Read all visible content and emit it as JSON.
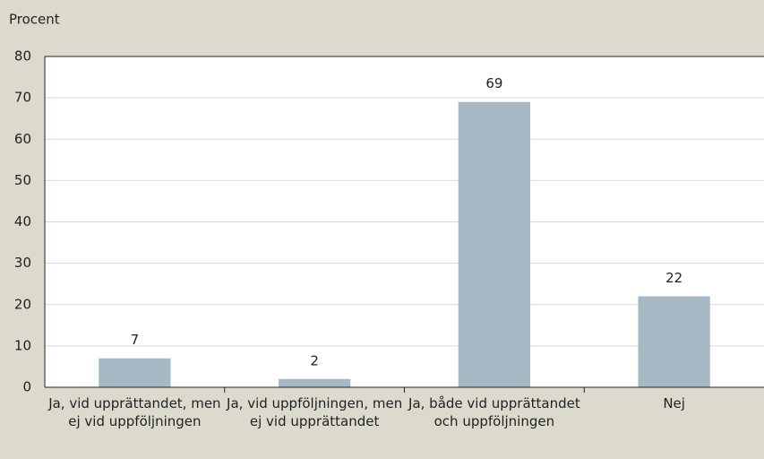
{
  "chart_data": {
    "type": "bar",
    "y_axis_label": "Procent",
    "categories": [
      "Ja, vid upprättandet, men ej vid uppföljningen",
      "Ja, vid uppföljningen, men ej vid upprättandet",
      "Ja, både vid upprättandet och uppföljningen",
      "Nej"
    ],
    "values": [
      7,
      2,
      69,
      22
    ],
    "color": "#a6b9c4",
    "ylim": [
      0,
      80
    ],
    "yticks": [
      0,
      10,
      20,
      30,
      40,
      50,
      60,
      70,
      80
    ],
    "grid": true
  }
}
